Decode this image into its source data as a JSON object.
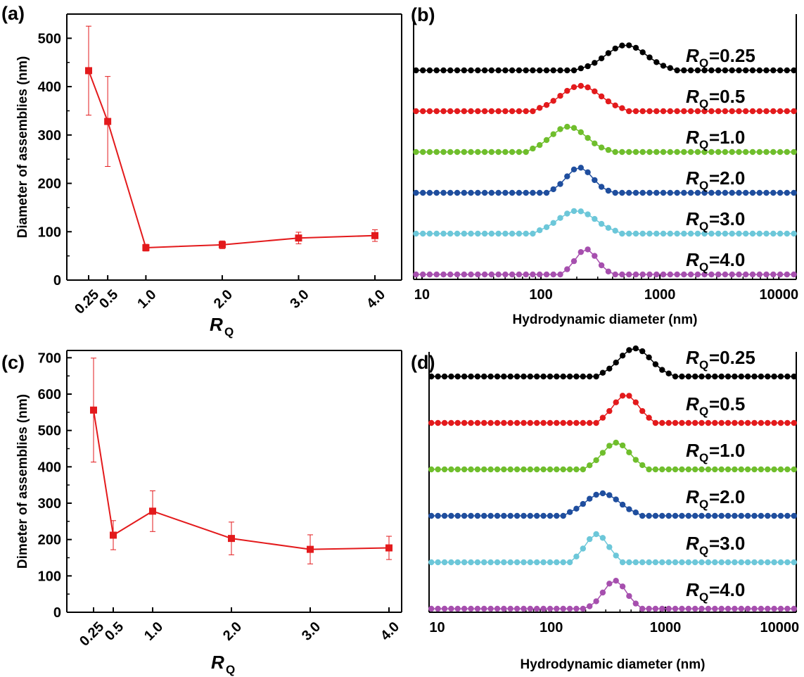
{
  "chart_data": [
    {
      "panel": "(a)",
      "type": "line",
      "x_categories": [
        "0.25",
        "0.5",
        "1.0",
        "2.0",
        "3.0",
        "4.0"
      ],
      "x": [
        0.25,
        0.5,
        1.0,
        2.0,
        3.0,
        4.0
      ],
      "values": [
        433,
        328,
        67,
        73,
        87,
        92
      ],
      "errors": [
        92,
        93,
        7,
        8,
        12,
        12
      ],
      "ylabel": "Diameter of assemblies (nm)",
      "xlabel": "R",
      "xlabel_sub": "Q",
      "ylim": [
        0,
        550
      ],
      "yticks": [
        "0",
        "100",
        "200",
        "300",
        "400",
        "500"
      ],
      "color": "#e31a1c"
    },
    {
      "panel": "(b)",
      "type": "line",
      "xscale": "log",
      "xlim": [
        8.5,
        14000
      ],
      "xticks": [
        "10",
        "100",
        "1000",
        "10000"
      ],
      "xlabel": "Hydrodynamic diameter (nm)",
      "series": [
        {
          "name_main": "R",
          "name_sub": "Q",
          "name_tail": "=0.25",
          "color": "#000000",
          "peak": 520,
          "width": 0.17,
          "height": 1.0
        },
        {
          "name_main": "R",
          "name_sub": "Q",
          "name_tail": "=0.5",
          "color": "#e31a1c",
          "peak": 215,
          "width": 0.17,
          "height": 1.0
        },
        {
          "name_main": "R",
          "name_sub": "Q",
          "name_tail": "=1.0",
          "color": "#6fbe2c",
          "peak": 170,
          "width": 0.15,
          "height": 1.0
        },
        {
          "name_main": "R",
          "name_sub": "Q",
          "name_tail": "=2.0",
          "color": "#1f4e9e",
          "peak": 210,
          "width": 0.11,
          "height": 1.0
        },
        {
          "name_main": "R",
          "name_sub": "Q",
          "name_tail": "=3.0",
          "color": "#6cc7d9",
          "peak": 200,
          "width": 0.16,
          "height": 0.9
        },
        {
          "name_main": "R",
          "name_sub": "Q",
          "name_tail": "=4.0",
          "color": "#a64fae",
          "peak": 240,
          "width": 0.09,
          "height": 1.0
        }
      ]
    },
    {
      "panel": "(c)",
      "type": "line",
      "x_categories": [
        "0.25",
        "0.5",
        "1.0",
        "2.0",
        "3.0",
        "4.0"
      ],
      "x": [
        0.25,
        0.5,
        1.0,
        2.0,
        3.0,
        4.0
      ],
      "values": [
        556,
        212,
        278,
        203,
        173,
        177
      ],
      "errors": [
        143,
        40,
        56,
        45,
        40,
        32
      ],
      "ylabel": "Dimeter of assemblies (nm)",
      "xlabel": "R",
      "xlabel_sub": "Q",
      "ylim": [
        0,
        720
      ],
      "yticks": [
        "0",
        "100",
        "200",
        "300",
        "400",
        "500",
        "600",
        "700"
      ],
      "color": "#e31a1c"
    },
    {
      "panel": "(d)",
      "type": "line",
      "xscale": "log",
      "xlim": [
        8.5,
        14000
      ],
      "xticks": [
        "10",
        "100",
        "1000",
        "10000"
      ],
      "xlabel": "Hydrodynamic diameter (nm)",
      "series": [
        {
          "name_main": "R",
          "name_sub": "Q",
          "name_tail": "=0.25",
          "color": "#000000",
          "peak": 540,
          "width": 0.14,
          "height": 1.0
        },
        {
          "name_main": "R",
          "name_sub": "Q",
          "name_tail": "=0.5",
          "color": "#e31a1c",
          "peak": 450,
          "width": 0.11,
          "height": 1.0
        },
        {
          "name_main": "R",
          "name_sub": "Q",
          "name_tail": "=1.0",
          "color": "#6fbe2c",
          "peak": 370,
          "width": 0.12,
          "height": 0.95
        },
        {
          "name_main": "R",
          "name_sub": "Q",
          "name_tail": "=2.0",
          "color": "#1f4e9e",
          "peak": 280,
          "width": 0.15,
          "height": 0.8
        },
        {
          "name_main": "R",
          "name_sub": "Q",
          "name_tail": "=3.0",
          "color": "#6cc7d9",
          "peak": 250,
          "width": 0.1,
          "height": 1.0
        },
        {
          "name_main": "R",
          "name_sub": "Q",
          "name_tail": "=4.0",
          "color": "#a64fae",
          "peak": 360,
          "width": 0.1,
          "height": 1.0
        }
      ]
    }
  ]
}
